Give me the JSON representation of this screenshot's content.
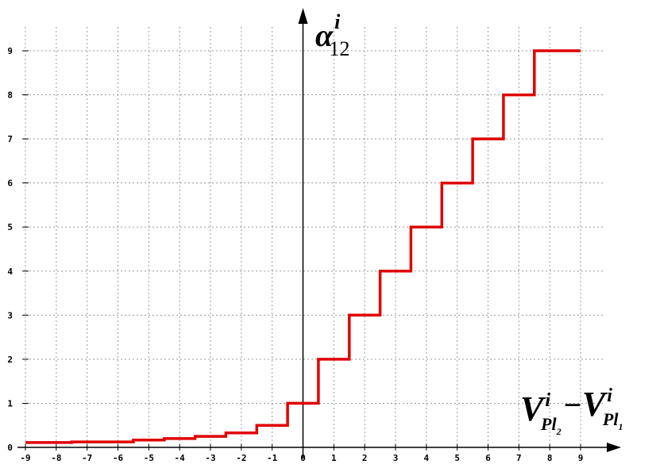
{
  "chart_data": {
    "type": "line",
    "step": true,
    "title": "",
    "xlabel": {
      "base": "V",
      "sup": "i",
      "sub_left": "Pl",
      "sub_left_index": "2",
      "operator": "−",
      "sub_right": "Pl",
      "sub_right_index": "1"
    },
    "ylabel": {
      "base": "α",
      "sup": "i",
      "sub": "12"
    },
    "xlim": [
      -9,
      9
    ],
    "ylim": [
      0,
      9
    ],
    "grid": true,
    "x_ticks": [
      -9,
      -8,
      -7,
      -6,
      -5,
      -4,
      -3,
      -2,
      -1,
      0,
      1,
      2,
      3,
      4,
      5,
      6,
      7,
      8,
      9
    ],
    "y_ticks": [
      0,
      1,
      2,
      3,
      4,
      5,
      6,
      7,
      8,
      9
    ],
    "x_tick_labels": [
      "-9",
      "-8",
      "-7",
      "-6",
      "-5",
      "-4",
      "-3",
      "-2",
      "-1",
      "0",
      "1",
      "2",
      "3",
      "4",
      "5",
      "6",
      "7",
      "8",
      "9"
    ],
    "y_tick_labels": [
      "0",
      "1",
      "2",
      "3",
      "4",
      "5",
      "6",
      "7",
      "8",
      "9"
    ],
    "series": [
      {
        "color": "#e00000",
        "points": [
          [
            -9.0,
            0.11
          ],
          [
            -7.5,
            0.11
          ],
          [
            -7.5,
            0.125
          ],
          [
            -5.5,
            0.125
          ],
          [
            -5.5,
            0.167
          ],
          [
            -4.5,
            0.167
          ],
          [
            -4.5,
            0.2
          ],
          [
            -3.5,
            0.2
          ],
          [
            -3.5,
            0.25
          ],
          [
            -2.5,
            0.25
          ],
          [
            -2.5,
            0.33
          ],
          [
            -1.5,
            0.33
          ],
          [
            -1.5,
            0.5
          ],
          [
            -0.5,
            0.5
          ],
          [
            -0.5,
            1.0
          ],
          [
            0.5,
            1.0
          ],
          [
            0.5,
            2.0
          ],
          [
            1.5,
            2.0
          ],
          [
            1.5,
            3.0
          ],
          [
            2.5,
            3.0
          ],
          [
            2.5,
            4.0
          ],
          [
            3.5,
            4.0
          ],
          [
            3.5,
            5.0
          ],
          [
            4.5,
            5.0
          ],
          [
            4.5,
            6.0
          ],
          [
            5.5,
            6.0
          ],
          [
            5.5,
            7.0
          ],
          [
            6.5,
            7.0
          ],
          [
            6.5,
            8.0
          ],
          [
            7.5,
            8.0
          ],
          [
            7.5,
            9.0
          ],
          [
            9.0,
            9.0
          ]
        ]
      }
    ]
  }
}
